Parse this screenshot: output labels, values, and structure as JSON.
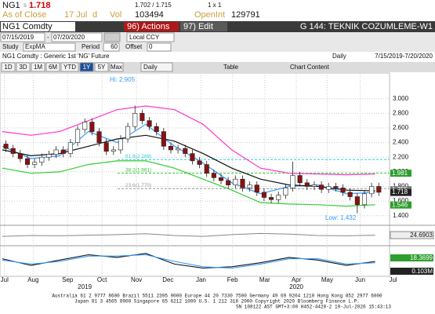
{
  "header": {
    "ticker": "NG1",
    "flag": "s",
    "last": "1.718",
    "bid_ask": "1.702 / 1.715",
    "size": "1 x 1",
    "as_of": "As of Close",
    "date": "17 Jul",
    "date_flag": "d",
    "vol_label": "Vol",
    "vol": "103494",
    "oi_label": "OpenInt",
    "oi": "129791"
  },
  "toolbar": {
    "security": "NG1 Comdty",
    "actions": "96) Actions",
    "edit": "97) Edit",
    "page": "G 144: TEKNIK COZUMLEME-W1",
    "start": "07/15/2019",
    "dash": "-",
    "end": "07/20/2020",
    "currency": "Local CCY",
    "study_label": "Study",
    "study": "ExpMA",
    "period_label": "Period",
    "period": "60",
    "offset_label": "Offset",
    "offset": "0"
  },
  "info": {
    "description": "NG1 Comdty : Generic 1st 'NG' Future",
    "frequency": "Daily",
    "range": "7/15/2019-7/20/2020"
  },
  "tabs": {
    "items": [
      "1D",
      "3D",
      "1M",
      "6M",
      "YTD",
      "1Y",
      "5Y",
      "Max"
    ],
    "active": 5,
    "period_select": "Daily",
    "table": "Table",
    "chart_content": "Chart Content"
  },
  "chart": {
    "type": "candlestick",
    "xlim": [
      0,
      54
    ],
    "ylim": [
      1.29,
      3.33
    ],
    "yticks": [
      {
        "value": 1.4,
        "label": "1.400"
      },
      {
        "value": 1.6,
        "label": "1.600"
      },
      {
        "value": 1.8,
        "label": "1.800"
      },
      {
        "value": 2.0,
        "label": "2.000"
      },
      {
        "value": 2.2,
        "label": "2.200"
      },
      {
        "value": 2.4,
        "label": "2.400"
      },
      {
        "value": 2.6,
        "label": "2.600"
      },
      {
        "value": 2.8,
        "label": "2.800"
      },
      {
        "value": 3.0,
        "label": "3.000"
      }
    ],
    "xticks": [
      {
        "value": 0.3,
        "label": "Jul"
      },
      {
        "value": 4.3,
        "label": "Aug"
      },
      {
        "value": 9.1,
        "label": "Sep"
      },
      {
        "value": 13.9,
        "label": "Oct"
      },
      {
        "value": 18.7,
        "label": "Nov"
      },
      {
        "value": 23.1,
        "label": "Dec"
      },
      {
        "value": 27.7,
        "label": "Jan"
      },
      {
        "value": 32.1,
        "label": "Feb"
      },
      {
        "value": 36.6,
        "label": "Mar"
      },
      {
        "value": 41,
        "label": "Apr"
      },
      {
        "value": 45.3,
        "label": "May"
      },
      {
        "value": 49.9,
        "label": "Jun"
      },
      {
        "value": 54.5,
        "label": "Jul"
      }
    ],
    "years": [
      {
        "value": 11.5,
        "label": "2019"
      },
      {
        "value": 41,
        "label": "2020"
      }
    ],
    "up_color": "#ffffff",
    "down_color": "#8b1010",
    "candles": {
      "x": [
        0.5,
        1.5,
        2.5,
        3.5,
        4.5,
        5.5,
        6.5,
        7.5,
        8.5,
        9.5,
        10.5,
        11.5,
        12.5,
        13.5,
        14.5,
        15.5,
        16.5,
        17.5,
        18.5,
        19.5,
        20.5,
        21.5,
        22.5,
        23.5,
        24.5,
        25.5,
        26.5,
        27.5,
        28.5,
        29.5,
        30.5,
        31.5,
        32.5,
        33.5,
        34.5,
        35.5,
        36.5,
        37.5,
        38.5,
        39.5,
        40.5,
        41.5,
        42.5,
        43.5,
        44.5,
        45.5,
        46.5,
        47.5,
        48.5,
        49.5,
        50.5,
        51.5,
        52.5
      ],
      "open": [
        2.38,
        2.32,
        2.25,
        2.18,
        2.1,
        2.13,
        2.2,
        2.24,
        2.3,
        2.25,
        2.4,
        2.58,
        2.68,
        2.55,
        2.4,
        2.28,
        2.3,
        2.45,
        2.62,
        2.8,
        2.7,
        2.62,
        2.55,
        2.35,
        2.3,
        2.32,
        2.25,
        2.15,
        2.1,
        1.98,
        1.92,
        1.88,
        1.82,
        1.9,
        1.78,
        1.82,
        1.72,
        1.65,
        1.62,
        1.68,
        1.78,
        1.95,
        1.85,
        1.8,
        1.82,
        1.76,
        1.8,
        1.78,
        1.72,
        1.66,
        1.55,
        1.7,
        1.8
      ],
      "high": [
        2.43,
        2.37,
        2.3,
        2.23,
        2.18,
        2.25,
        2.29,
        2.35,
        2.35,
        2.45,
        2.63,
        2.73,
        2.73,
        2.6,
        2.45,
        2.35,
        2.5,
        2.67,
        2.905,
        2.85,
        2.75,
        2.67,
        2.6,
        2.4,
        2.37,
        2.37,
        2.3,
        2.2,
        2.15,
        2.03,
        1.97,
        1.93,
        1.95,
        1.95,
        1.87,
        1.87,
        1.77,
        1.7,
        1.73,
        1.83,
        2.14,
        2.0,
        1.9,
        1.87,
        1.87,
        1.85,
        1.85,
        1.83,
        1.77,
        1.71,
        1.75,
        1.85,
        1.85
      ],
      "low": [
        2.27,
        2.2,
        2.13,
        2.05,
        2.05,
        2.08,
        2.15,
        2.19,
        2.2,
        2.2,
        2.35,
        2.53,
        2.5,
        2.35,
        2.23,
        2.23,
        2.25,
        2.4,
        2.57,
        2.65,
        2.57,
        2.5,
        2.3,
        2.25,
        2.25,
        2.2,
        2.1,
        2.05,
        1.93,
        1.87,
        1.83,
        1.77,
        1.77,
        1.73,
        1.73,
        1.67,
        1.6,
        1.57,
        1.57,
        1.63,
        1.73,
        1.8,
        1.75,
        1.75,
        1.71,
        1.71,
        1.73,
        1.67,
        1.61,
        1.432,
        1.5,
        1.65,
        1.67
      ],
      "close": [
        2.32,
        2.25,
        2.18,
        2.1,
        2.13,
        2.2,
        2.24,
        2.3,
        2.25,
        2.4,
        2.58,
        2.68,
        2.55,
        2.4,
        2.28,
        2.3,
        2.45,
        2.62,
        2.8,
        2.7,
        2.62,
        2.55,
        2.35,
        2.3,
        2.32,
        2.25,
        2.15,
        2.1,
        1.98,
        1.92,
        1.88,
        1.82,
        1.9,
        1.78,
        1.82,
        1.72,
        1.65,
        1.62,
        1.68,
        1.78,
        1.95,
        1.85,
        1.8,
        1.82,
        1.76,
        1.8,
        1.78,
        1.72,
        1.66,
        1.55,
        1.7,
        1.8,
        1.72
      ]
    },
    "line_x": [
      0,
      4,
      8,
      12,
      16,
      20,
      24,
      28,
      32,
      36,
      40,
      44,
      48,
      52
    ],
    "lines": [
      {
        "color": "#ff33cc",
        "values": [
          2.55,
          2.5,
          2.55,
          2.7,
          2.85,
          2.9,
          2.85,
          2.65,
          2.3,
          2.05,
          1.98,
          1.97,
          1.96,
          1.97
        ]
      },
      {
        "color": "#33cc33",
        "values": [
          2.05,
          1.98,
          2.0,
          2.1,
          2.15,
          2.15,
          2.05,
          1.9,
          1.75,
          1.58,
          1.56,
          1.55,
          1.53,
          1.55
        ]
      },
      {
        "color": "#3399ff",
        "values": [
          2.35,
          2.18,
          2.22,
          2.55,
          2.4,
          2.65,
          2.35,
          2.12,
          1.85,
          1.7,
          1.8,
          1.82,
          1.7,
          1.72
        ]
      },
      {
        "color": "#111111",
        "values": [
          2.3,
          2.22,
          2.25,
          2.35,
          2.45,
          2.5,
          2.42,
          2.25,
          2.05,
          1.9,
          1.82,
          1.8,
          1.75,
          1.74
        ]
      }
    ],
    "fib": [
      {
        "value": 2.168,
        "label": "61.8(2.168)",
        "color": "#33ccdd"
      },
      {
        "value": 1.981,
        "label": "38.2(1.981)",
        "color": "#33cc33"
      },
      {
        "value": 1.77,
        "label": "23.6(1.770)",
        "color": "#999999"
      }
    ],
    "hi_label": "Hi: 2.905",
    "low_label": "Low: 1.432",
    "tags": [
      {
        "value": 1.981,
        "color": "#2e9e2e"
      },
      {
        "value": 1.755,
        "color": "#777777"
      },
      {
        "value": 1.718,
        "color": "#222222"
      },
      {
        "value": 1.546,
        "color": "#2e9e2e"
      }
    ],
    "panel2": {
      "ylim": [
        0,
        100
      ],
      "color": "#888888",
      "values": [
        45,
        50,
        48,
        52,
        55,
        60,
        50,
        45,
        55,
        62,
        58,
        50,
        48,
        52
      ],
      "tag": "24.6903"
    },
    "panel3": {
      "ylim": [
        -1,
        1
      ],
      "lines": [
        {
          "color": "#111111",
          "values": [
            0.2,
            -0.3,
            0.1,
            0.5,
            0.3,
            0.6,
            -0.2,
            -0.5,
            -0.4,
            -0.1,
            0.3,
            0.1,
            -0.3,
            0.0
          ]
        },
        {
          "color": "#3399ff",
          "values": [
            0.1,
            -0.2,
            0.0,
            0.4,
            0.4,
            0.5,
            0.0,
            -0.4,
            -0.5,
            -0.2,
            0.2,
            0.2,
            -0.2,
            -0.1
          ]
        }
      ],
      "tag": "18.3699",
      "tag2": "0.103M"
    }
  },
  "footer": [
    "Australia 61 2 9777 8600 Brazil 5511 2395 9000 Europe 44 20 7330 7500 Germany 49 69 9204 1210 Hong Kong 852 2977 6000",
    "Japan 81 3 4565 8900    Singapore 65 6212 1000    U.S. 1 212 318 2000    Copyright 2020 Bloomberg Finance L.P.",
    "SN 108122 AST  GMT+3:00 H452-4428-2 19-Jul-2020 15:43:13"
  ]
}
